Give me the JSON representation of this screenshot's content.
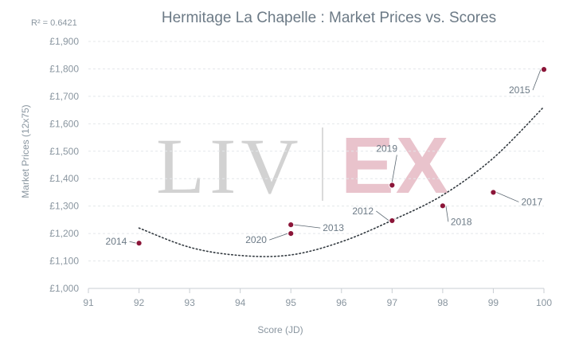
{
  "chart_data": {
    "type": "scatter",
    "title": "Hermitage La Chapelle : Market Prices vs. Scores",
    "r_squared_label": "R² = 0.6421",
    "xlabel": "Score (JD)",
    "ylabel": "Market Prices (12x75)",
    "xlim": [
      91,
      100
    ],
    "ylim": [
      1000,
      1900
    ],
    "x_ticks": [
      91,
      92,
      93,
      94,
      95,
      96,
      97,
      98,
      99,
      100
    ],
    "y_ticks": [
      1000,
      1100,
      1200,
      1300,
      1400,
      1500,
      1600,
      1700,
      1800,
      1900
    ],
    "y_tick_labels": [
      "£1,000",
      "£1,100",
      "£1,200",
      "£1,300",
      "£1,400",
      "£1,500",
      "£1,600",
      "£1,700",
      "£1,800",
      "£1,900"
    ],
    "points": [
      {
        "label": "2014",
        "x": 92,
        "y": 1165
      },
      {
        "label": "2013",
        "x": 95,
        "y": 1232
      },
      {
        "label": "2020",
        "x": 95,
        "y": 1200
      },
      {
        "label": "2019",
        "x": 97,
        "y": 1376
      },
      {
        "label": "2012",
        "x": 97,
        "y": 1247
      },
      {
        "label": "2018",
        "x": 98,
        "y": 1301
      },
      {
        "label": "2017",
        "x": 99,
        "y": 1350
      },
      {
        "label": "2015",
        "x": 100,
        "y": 1798
      }
    ],
    "trendline": {
      "type": "polynomial",
      "order": 2,
      "style": "dotted",
      "points": [
        [
          92,
          1220
        ],
        [
          93,
          1150
        ],
        [
          94,
          1120
        ],
        [
          95,
          1122
        ],
        [
          96,
          1170
        ],
        [
          97,
          1248
        ],
        [
          98,
          1340
        ],
        [
          99,
          1475
        ],
        [
          100,
          1662
        ]
      ]
    },
    "point_color": "#8b1538",
    "grid": "horizontal dashed",
    "legend": "none"
  },
  "watermark": {
    "left": "LIV",
    "right": "EX"
  }
}
